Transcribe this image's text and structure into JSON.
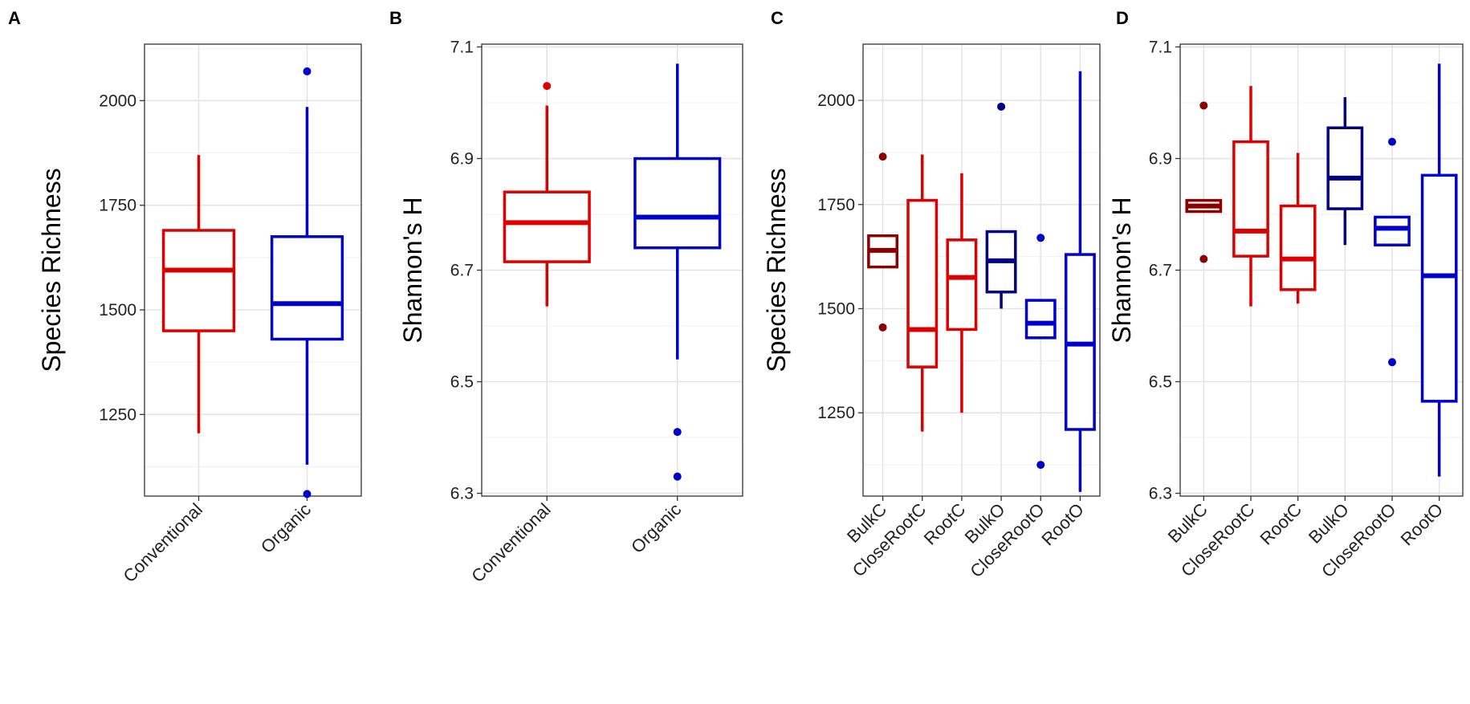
{
  "chart_data": [
    {
      "panel": "A",
      "type": "boxplot",
      "ylabel": "Species Richness",
      "ylim": [
        1055,
        2135
      ],
      "yticks": [
        1250,
        1500,
        1750,
        2000
      ],
      "ytick_labels": [
        "1250",
        "1500",
        "1750",
        "2000"
      ],
      "grid": true,
      "categories": [
        "Conventional",
        "Organic"
      ],
      "colors": [
        "#dd0000",
        "#0000cc"
      ],
      "boxes": [
        {
          "name": "Conventional",
          "whisker_low": 1205,
          "q1": 1450,
          "median": 1595,
          "q3": 1690,
          "whisker_high": 1870,
          "outliers": []
        },
        {
          "name": "Organic",
          "whisker_low": 1130,
          "q1": 1430,
          "median": 1515,
          "q3": 1675,
          "whisker_high": 1985,
          "outliers": [
            2070,
            1060
          ]
        }
      ]
    },
    {
      "panel": "B",
      "type": "boxplot",
      "ylabel": "Shannon's H",
      "ylim": [
        6.295,
        7.105
      ],
      "yticks": [
        6.3,
        6.5,
        6.7,
        6.9,
        7.1
      ],
      "ytick_labels": [
        "6.3",
        "6.5",
        "6.7",
        "6.9",
        "7.1"
      ],
      "grid": true,
      "categories": [
        "Conventional",
        "Organic"
      ],
      "colors": [
        "#dd0000",
        "#0000cc"
      ],
      "boxes": [
        {
          "name": "Conventional",
          "whisker_low": 6.635,
          "q1": 6.715,
          "median": 6.785,
          "q3": 6.84,
          "whisker_high": 6.995,
          "outliers": [
            7.03
          ]
        },
        {
          "name": "Organic",
          "whisker_low": 6.54,
          "q1": 6.74,
          "median": 6.795,
          "q3": 6.9,
          "whisker_high": 7.07,
          "outliers": [
            6.41,
            6.33
          ]
        }
      ]
    },
    {
      "panel": "C",
      "type": "boxplot",
      "ylabel": "Species Richness",
      "ylim": [
        1050,
        2135
      ],
      "yticks": [
        1250,
        1500,
        1750,
        2000
      ],
      "ytick_labels": [
        "1250",
        "1500",
        "1750",
        "2000"
      ],
      "grid": true,
      "categories": [
        "BulkC",
        "CloseRootC",
        "RootC",
        "BulkO",
        "CloseRootO",
        "RootO"
      ],
      "colors": [
        "#8b0000",
        "#dd0000",
        "#dd0000",
        "#000080",
        "#0000cc",
        "#0000cc"
      ],
      "boxes": [
        {
          "name": "BulkC",
          "whisker_low": 1600,
          "q1": 1600,
          "median": 1640,
          "q3": 1675,
          "whisker_high": 1675,
          "outliers": [
            1865,
            1455
          ]
        },
        {
          "name": "CloseRootC",
          "whisker_low": 1205,
          "q1": 1360,
          "median": 1450,
          "q3": 1760,
          "whisker_high": 1870,
          "outliers": []
        },
        {
          "name": "RootC",
          "whisker_low": 1250,
          "q1": 1450,
          "median": 1575,
          "q3": 1665,
          "whisker_high": 1825,
          "outliers": []
        },
        {
          "name": "BulkO",
          "whisker_low": 1500,
          "q1": 1540,
          "median": 1615,
          "q3": 1685,
          "whisker_high": 1685,
          "outliers": [
            1985
          ]
        },
        {
          "name": "CloseRootO",
          "whisker_low": 1430,
          "q1": 1430,
          "median": 1465,
          "q3": 1520,
          "whisker_high": 1520,
          "outliers": [
            1670,
            1125
          ]
        },
        {
          "name": "RootO",
          "whisker_low": 1060,
          "q1": 1210,
          "median": 1415,
          "q3": 1630,
          "whisker_high": 2070,
          "outliers": []
        }
      ]
    },
    {
      "panel": "D",
      "type": "boxplot",
      "ylabel": "Shannon's H",
      "ylim": [
        6.295,
        7.105
      ],
      "yticks": [
        6.3,
        6.5,
        6.7,
        6.9,
        7.1
      ],
      "ytick_labels": [
        "6.3",
        "6.5",
        "6.7",
        "6.9",
        "7.1"
      ],
      "grid": true,
      "categories": [
        "BulkC",
        "CloseRootC",
        "RootC",
        "BulkO",
        "CloseRootO",
        "RootO"
      ],
      "colors": [
        "#8b0000",
        "#dd0000",
        "#dd0000",
        "#000080",
        "#0000cc",
        "#0000cc"
      ],
      "boxes": [
        {
          "name": "BulkC",
          "whisker_low": 6.805,
          "q1": 6.805,
          "median": 6.815,
          "q3": 6.825,
          "whisker_high": 6.825,
          "outliers": [
            6.995,
            6.72
          ]
        },
        {
          "name": "CloseRootC",
          "whisker_low": 6.635,
          "q1": 6.725,
          "median": 6.77,
          "q3": 6.93,
          "whisker_high": 7.03,
          "outliers": []
        },
        {
          "name": "RootC",
          "whisker_low": 6.64,
          "q1": 6.665,
          "median": 6.72,
          "q3": 6.815,
          "whisker_high": 6.91,
          "outliers": []
        },
        {
          "name": "BulkO",
          "whisker_low": 6.745,
          "q1": 6.81,
          "median": 6.865,
          "q3": 6.955,
          "whisker_high": 7.01,
          "outliers": []
        },
        {
          "name": "CloseRootO",
          "whisker_low": 6.745,
          "q1": 6.745,
          "median": 6.775,
          "q3": 6.795,
          "whisker_high": 6.795,
          "outliers": [
            6.93,
            6.535
          ]
        },
        {
          "name": "RootO",
          "whisker_low": 6.33,
          "q1": 6.465,
          "median": 6.69,
          "q3": 6.87,
          "whisker_high": 7.07,
          "outliers": []
        }
      ]
    }
  ]
}
